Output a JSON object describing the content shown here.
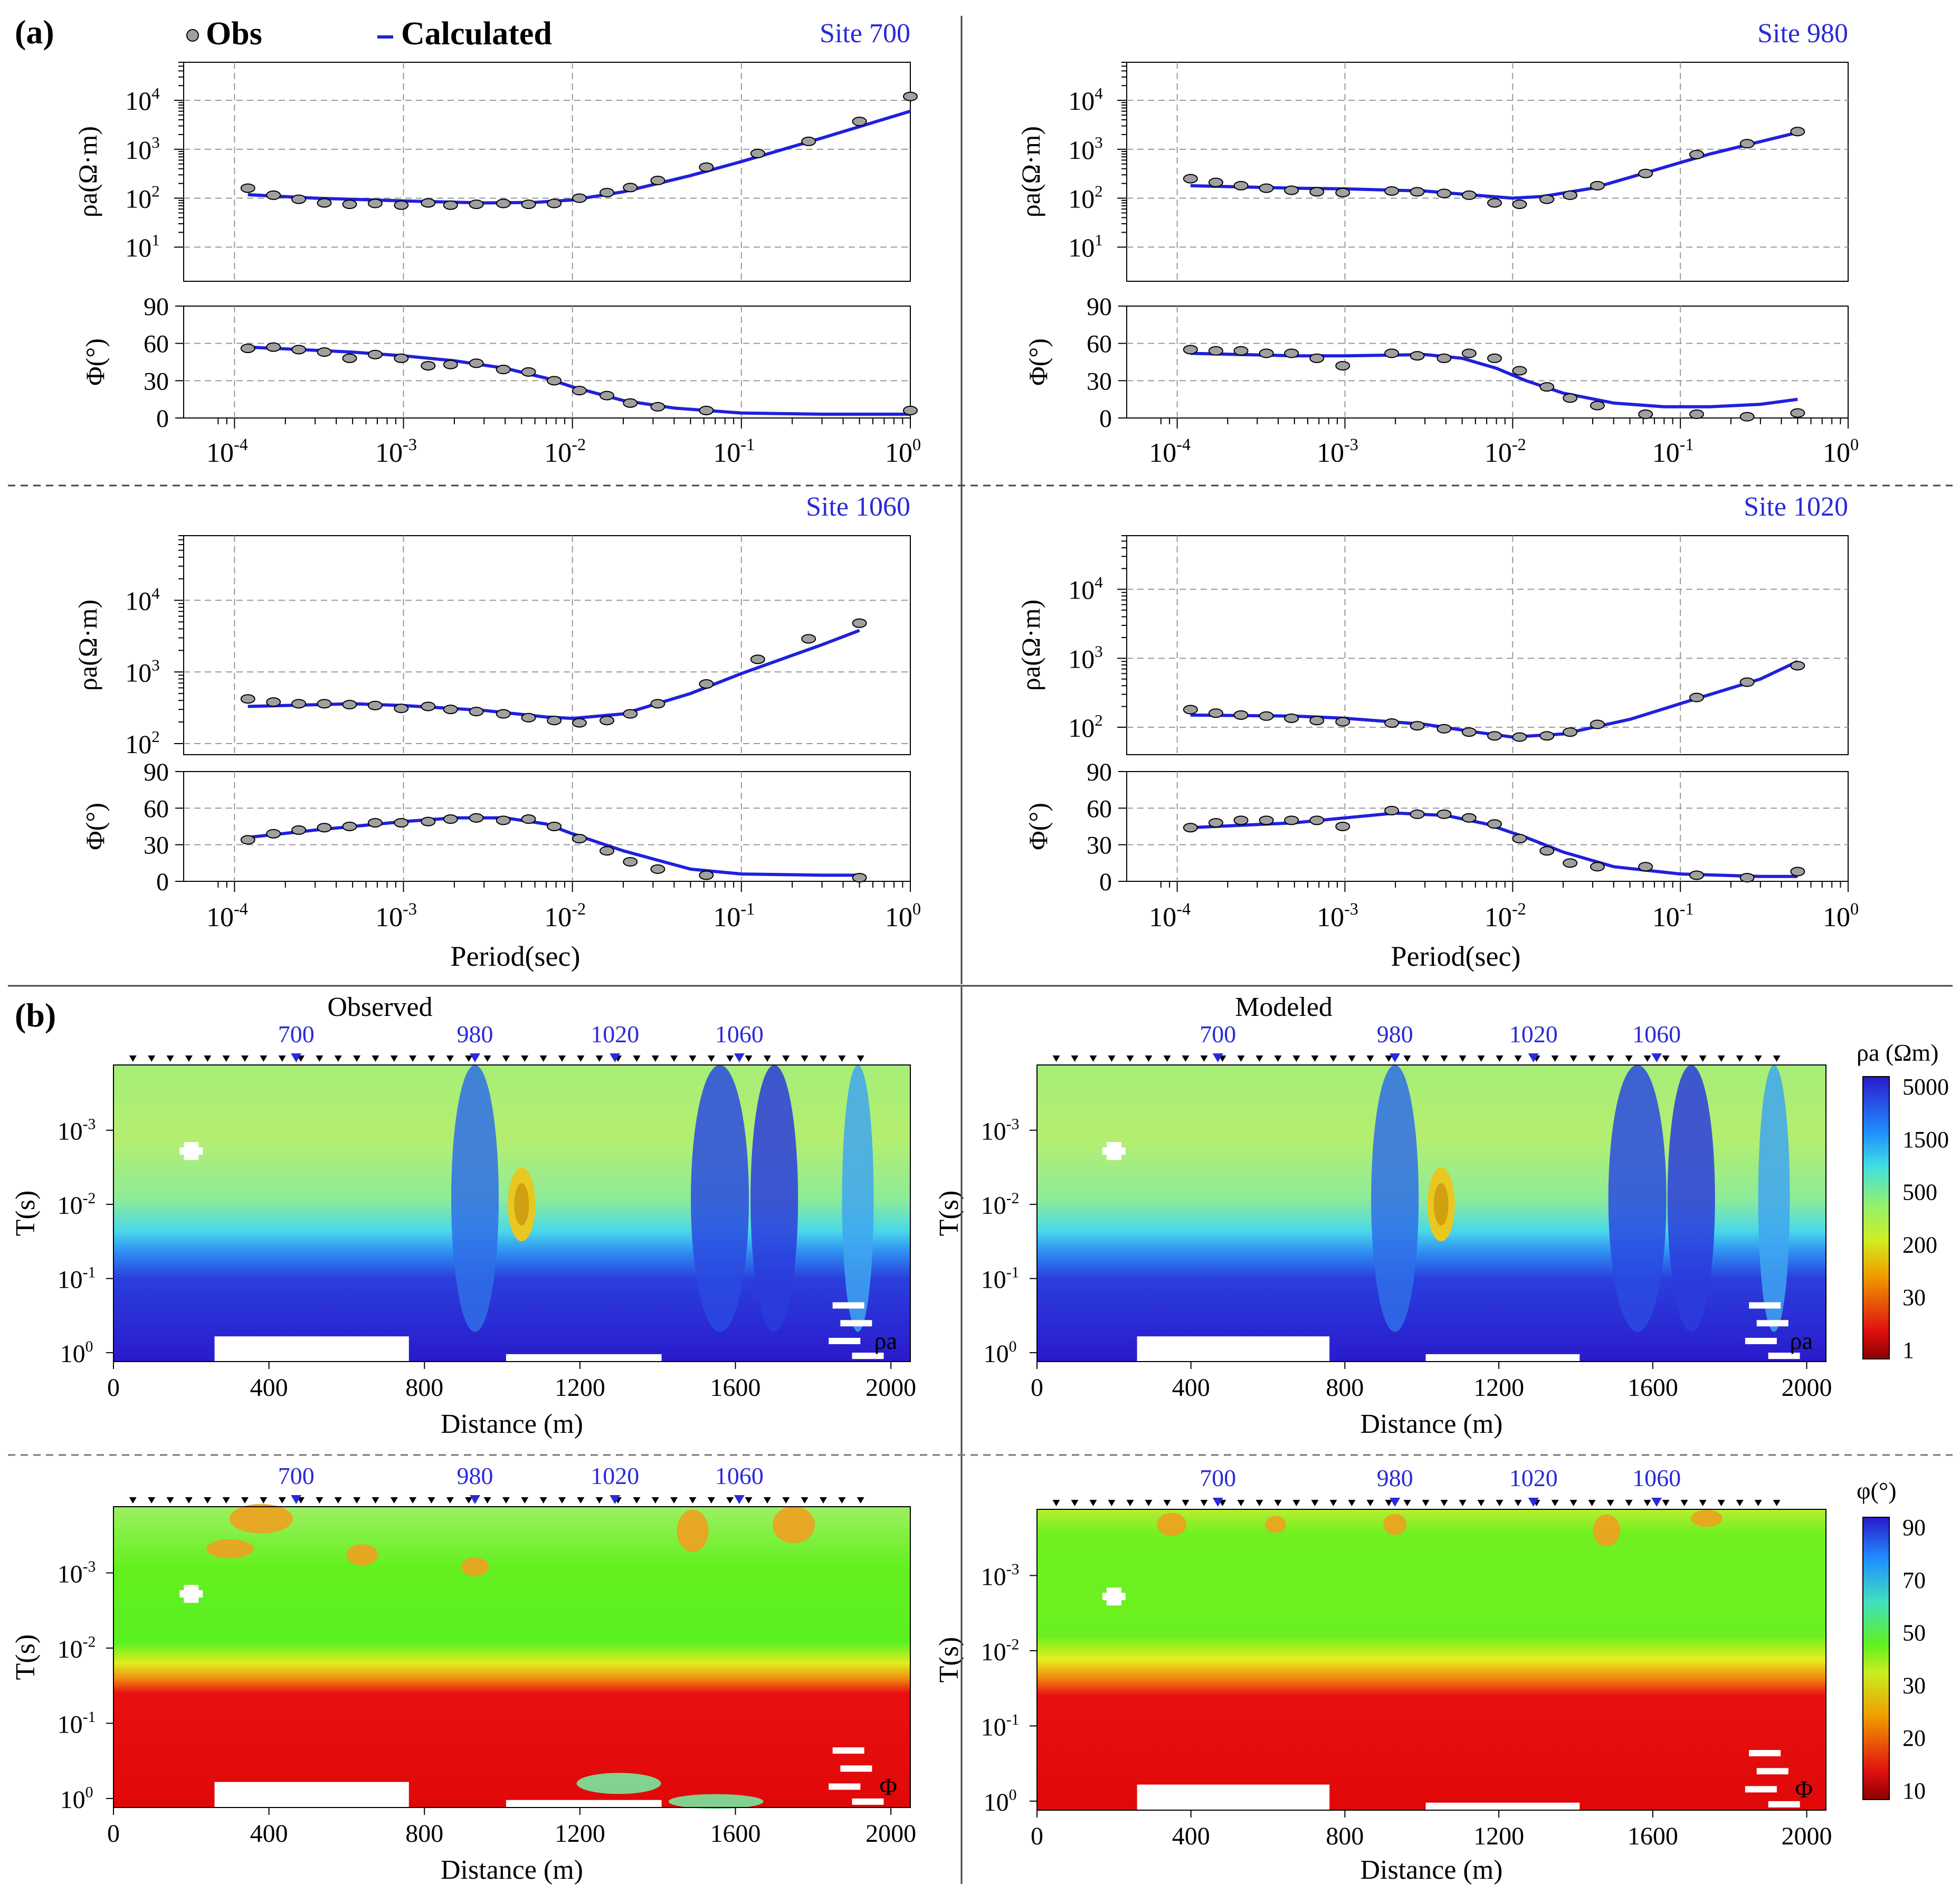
{
  "panel_labels": {
    "a": "(a)",
    "b": "(b)"
  },
  "legend": {
    "obs": "Obs",
    "calc": "Calculated",
    "marker_icon": "filled-gray-circle-icon",
    "line_icon": "blue-line-icon"
  },
  "colors": {
    "calc_line": "#2020dd",
    "site_label": "#2a2ad8",
    "obs_fill": "#a0a0a0",
    "text": "#000000",
    "grid": "#999999"
  },
  "sounding_axes": {
    "rho_label": "ρa(Ω·m)",
    "phi_label": "Φ(°)",
    "x_label": "Period(sec)",
    "x_ticks": [
      "-4",
      "-3",
      "-2",
      "-1",
      "0"
    ],
    "phi_ticks": [
      "0",
      "30",
      "60",
      "90"
    ]
  },
  "sections": {
    "observed_title": "Observed",
    "modeled_title": "Modeled",
    "x_label": "Distance (m)",
    "y_label": "T(s)",
    "x_ticks": [
      "0",
      "400",
      "800",
      "1200",
      "1600",
      "2000"
    ],
    "y_ticks": [
      "-3",
      "-2",
      "-1",
      "0"
    ],
    "station_labels": [
      "700",
      "980",
      "1020",
      "1060"
    ],
    "rho_tag": "ρa",
    "phi_tag": "Φ",
    "rho_colorbar_title": "ρa (Ωm)",
    "phi_colorbar_title": "φ(°)",
    "rho_colorbar_ticks": [
      "5000",
      "1500",
      "500",
      "200",
      "30",
      "1"
    ],
    "phi_colorbar_ticks": [
      "90",
      "70",
      "50",
      "30",
      "20",
      "10"
    ]
  },
  "chart_data": [
    {
      "type": "scatter",
      "title": "Site 700",
      "x_scale": "log",
      "xlim": [
        5e-05,
        1
      ],
      "rho": {
        "ylabel": "ρa(Ω·m)",
        "ylim": [
          2,
          60000
        ],
        "y_scale": "log",
        "y_ticks": [
          "1",
          "2",
          "3",
          "4"
        ],
        "obs": [
          [
            0.00012,
            160
          ],
          [
            0.00017,
            115
          ],
          [
            0.00024,
            95
          ],
          [
            0.00034,
            80
          ],
          [
            0.00048,
            75
          ],
          [
            0.00068,
            78
          ],
          [
            0.00097,
            72
          ],
          [
            0.0014,
            80
          ],
          [
            0.0019,
            72
          ],
          [
            0.0027,
            75
          ],
          [
            0.0039,
            78
          ],
          [
            0.0055,
            75
          ],
          [
            0.0078,
            78
          ],
          [
            0.011,
            100
          ],
          [
            0.016,
            130
          ],
          [
            0.022,
            165
          ],
          [
            0.032,
            230
          ],
          [
            0.062,
            430
          ],
          [
            0.125,
            820
          ],
          [
            0.25,
            1450
          ],
          [
            0.5,
            3700
          ],
          [
            1.0,
            12000
          ]
        ],
        "calc": [
          [
            0.00012,
            118
          ],
          [
            0.0003,
            100
          ],
          [
            0.001,
            88
          ],
          [
            0.003,
            80
          ],
          [
            0.006,
            82
          ],
          [
            0.01,
            92
          ],
          [
            0.02,
            135
          ],
          [
            0.05,
            290
          ],
          [
            0.1,
            560
          ],
          [
            0.3,
            1700
          ],
          [
            1.0,
            6000
          ]
        ]
      },
      "phi": {
        "ylabel": "Φ(°)",
        "ylim": [
          0,
          90
        ],
        "obs": [
          [
            0.00012,
            56
          ],
          [
            0.00017,
            57
          ],
          [
            0.00024,
            55
          ],
          [
            0.00034,
            53
          ],
          [
            0.00048,
            48
          ],
          [
            0.00068,
            51
          ],
          [
            0.00097,
            48
          ],
          [
            0.0014,
            42
          ],
          [
            0.0019,
            43
          ],
          [
            0.0027,
            44
          ],
          [
            0.0039,
            39
          ],
          [
            0.0055,
            37
          ],
          [
            0.0078,
            30
          ],
          [
            0.011,
            22
          ],
          [
            0.016,
            18
          ],
          [
            0.022,
            12
          ],
          [
            0.032,
            9
          ],
          [
            0.062,
            6
          ],
          [
            1.0,
            6
          ]
        ],
        "calc": [
          [
            0.00012,
            57
          ],
          [
            0.0005,
            53
          ],
          [
            0.001,
            50
          ],
          [
            0.002,
            46
          ],
          [
            0.004,
            40
          ],
          [
            0.007,
            32
          ],
          [
            0.01,
            25
          ],
          [
            0.02,
            14
          ],
          [
            0.04,
            8
          ],
          [
            0.1,
            4
          ],
          [
            0.3,
            3
          ],
          [
            1.0,
            3
          ]
        ]
      }
    },
    {
      "type": "scatter",
      "title": "Site 980",
      "x_scale": "log",
      "xlim": [
        5e-05,
        1
      ],
      "rho": {
        "ylabel": "ρa(Ω·m)",
        "ylim": [
          2,
          60000
        ],
        "y_scale": "log",
        "y_ticks": [
          "1",
          "2",
          "3",
          "4"
        ],
        "obs": [
          [
            0.00012,
            250
          ],
          [
            0.00017,
            210
          ],
          [
            0.00024,
            180
          ],
          [
            0.00034,
            160
          ],
          [
            0.00048,
            145
          ],
          [
            0.00068,
            135
          ],
          [
            0.00097,
            130
          ],
          [
            0.0019,
            140
          ],
          [
            0.0027,
            135
          ],
          [
            0.0039,
            125
          ],
          [
            0.0055,
            115
          ],
          [
            0.0078,
            80
          ],
          [
            0.011,
            75
          ],
          [
            0.016,
            95
          ],
          [
            0.022,
            115
          ],
          [
            0.032,
            180
          ],
          [
            0.062,
            320
          ],
          [
            0.125,
            780
          ],
          [
            0.25,
            1300
          ],
          [
            0.5,
            2300
          ]
        ],
        "calc": [
          [
            0.00012,
            180
          ],
          [
            0.0005,
            160
          ],
          [
            0.001,
            155
          ],
          [
            0.003,
            140
          ],
          [
            0.006,
            115
          ],
          [
            0.01,
            100
          ],
          [
            0.015,
            108
          ],
          [
            0.03,
            160
          ],
          [
            0.06,
            320
          ],
          [
            0.15,
            800
          ],
          [
            0.5,
            2200
          ]
        ]
      },
      "phi": {
        "ylabel": "Φ(°)",
        "ylim": [
          0,
          90
        ],
        "obs": [
          [
            0.00012,
            55
          ],
          [
            0.00017,
            54
          ],
          [
            0.00024,
            54
          ],
          [
            0.00034,
            52
          ],
          [
            0.00048,
            52
          ],
          [
            0.00068,
            48
          ],
          [
            0.00097,
            42
          ],
          [
            0.0019,
            52
          ],
          [
            0.0027,
            50
          ],
          [
            0.0039,
            48
          ],
          [
            0.0055,
            52
          ],
          [
            0.0078,
            48
          ],
          [
            0.011,
            38
          ],
          [
            0.016,
            25
          ],
          [
            0.022,
            16
          ],
          [
            0.032,
            10
          ],
          [
            0.062,
            3
          ],
          [
            0.125,
            3
          ],
          [
            0.25,
            1
          ],
          [
            0.5,
            4
          ]
        ],
        "calc": [
          [
            0.00012,
            52
          ],
          [
            0.0005,
            50
          ],
          [
            0.001,
            50
          ],
          [
            0.003,
            51
          ],
          [
            0.005,
            48
          ],
          [
            0.008,
            40
          ],
          [
            0.012,
            30
          ],
          [
            0.02,
            20
          ],
          [
            0.04,
            12
          ],
          [
            0.08,
            9
          ],
          [
            0.15,
            9
          ],
          [
            0.3,
            11
          ],
          [
            0.5,
            15
          ]
        ]
      }
    },
    {
      "type": "scatter",
      "title": "Site 1060",
      "x_scale": "log",
      "xlim": [
        5e-05,
        1
      ],
      "rho": {
        "ylabel": "ρa(Ω·m)",
        "ylim": [
          70,
          80000
        ],
        "y_scale": "log",
        "y_ticks": [
          "2",
          "3",
          "4"
        ],
        "obs": [
          [
            0.00012,
            420
          ],
          [
            0.00017,
            380
          ],
          [
            0.00024,
            360
          ],
          [
            0.00034,
            360
          ],
          [
            0.00048,
            350
          ],
          [
            0.00068,
            340
          ],
          [
            0.00097,
            310
          ],
          [
            0.0014,
            330
          ],
          [
            0.0019,
            300
          ],
          [
            0.0027,
            280
          ],
          [
            0.0039,
            260
          ],
          [
            0.0055,
            230
          ],
          [
            0.0078,
            210
          ],
          [
            0.011,
            195
          ],
          [
            0.016,
            210
          ],
          [
            0.022,
            260
          ],
          [
            0.032,
            360
          ],
          [
            0.062,
            680
          ],
          [
            0.125,
            1500
          ],
          [
            0.25,
            2900
          ],
          [
            0.5,
            4800
          ]
        ],
        "calc": [
          [
            0.00012,
            330
          ],
          [
            0.0005,
            360
          ],
          [
            0.001,
            340
          ],
          [
            0.003,
            290
          ],
          [
            0.007,
            235
          ],
          [
            0.01,
            225
          ],
          [
            0.02,
            260
          ],
          [
            0.05,
            500
          ],
          [
            0.1,
            950
          ],
          [
            0.3,
            2400
          ],
          [
            0.5,
            3800
          ]
        ]
      },
      "phi": {
        "ylabel": "Φ(°)",
        "ylim": [
          0,
          90
        ],
        "obs": [
          [
            0.00012,
            34
          ],
          [
            0.00017,
            39
          ],
          [
            0.00024,
            42
          ],
          [
            0.00034,
            44
          ],
          [
            0.00048,
            45
          ],
          [
            0.00068,
            48
          ],
          [
            0.00097,
            48
          ],
          [
            0.0014,
            49
          ],
          [
            0.0019,
            51
          ],
          [
            0.0027,
            52
          ],
          [
            0.0039,
            50
          ],
          [
            0.0055,
            51
          ],
          [
            0.0078,
            45
          ],
          [
            0.011,
            35
          ],
          [
            0.016,
            25
          ],
          [
            0.022,
            16
          ],
          [
            0.032,
            10
          ],
          [
            0.062,
            5
          ],
          [
            0.5,
            3
          ]
        ],
        "calc": [
          [
            0.00012,
            36
          ],
          [
            0.0003,
            42
          ],
          [
            0.001,
            49
          ],
          [
            0.002,
            52
          ],
          [
            0.004,
            52
          ],
          [
            0.007,
            47
          ],
          [
            0.01,
            39
          ],
          [
            0.02,
            25
          ],
          [
            0.05,
            10
          ],
          [
            0.1,
            6
          ],
          [
            0.3,
            5
          ],
          [
            0.5,
            5
          ]
        ]
      }
    },
    {
      "type": "scatter",
      "title": "Site 1020",
      "x_scale": "log",
      "xlim": [
        5e-05,
        1
      ],
      "rho": {
        "ylabel": "ρa(Ω·m)",
        "ylim": [
          40,
          60000
        ],
        "y_scale": "log",
        "y_ticks": [
          "2",
          "3",
          "4"
        ],
        "obs": [
          [
            0.00012,
            180
          ],
          [
            0.00017,
            160
          ],
          [
            0.00024,
            150
          ],
          [
            0.00034,
            145
          ],
          [
            0.00048,
            135
          ],
          [
            0.00068,
            125
          ],
          [
            0.00097,
            120
          ],
          [
            0.0019,
            115
          ],
          [
            0.0027,
            105
          ],
          [
            0.0039,
            95
          ],
          [
            0.0055,
            85
          ],
          [
            0.0078,
            75
          ],
          [
            0.011,
            72
          ],
          [
            0.016,
            75
          ],
          [
            0.022,
            85
          ],
          [
            0.032,
            110
          ],
          [
            0.125,
            270
          ],
          [
            0.25,
            450
          ],
          [
            0.5,
            780
          ]
        ],
        "calc": [
          [
            0.00012,
            150
          ],
          [
            0.0005,
            145
          ],
          [
            0.001,
            135
          ],
          [
            0.003,
            110
          ],
          [
            0.006,
            85
          ],
          [
            0.01,
            72
          ],
          [
            0.02,
            80
          ],
          [
            0.05,
            130
          ],
          [
            0.1,
            220
          ],
          [
            0.3,
            500
          ],
          [
            0.5,
            900
          ]
        ]
      },
      "phi": {
        "ylabel": "Φ(°)",
        "ylim": [
          0,
          90
        ],
        "obs": [
          [
            0.00012,
            44
          ],
          [
            0.00017,
            48
          ],
          [
            0.00024,
            50
          ],
          [
            0.00034,
            50
          ],
          [
            0.00048,
            50
          ],
          [
            0.00068,
            50
          ],
          [
            0.00097,
            45
          ],
          [
            0.0019,
            58
          ],
          [
            0.0027,
            55
          ],
          [
            0.0039,
            55
          ],
          [
            0.0055,
            52
          ],
          [
            0.0078,
            47
          ],
          [
            0.011,
            35
          ],
          [
            0.016,
            25
          ],
          [
            0.022,
            15
          ],
          [
            0.032,
            12
          ],
          [
            0.062,
            12
          ],
          [
            0.125,
            5
          ],
          [
            0.25,
            3
          ],
          [
            0.5,
            8
          ]
        ],
        "calc": [
          [
            0.00012,
            44
          ],
          [
            0.0005,
            48
          ],
          [
            0.001,
            52
          ],
          [
            0.002,
            56
          ],
          [
            0.004,
            54
          ],
          [
            0.007,
            47
          ],
          [
            0.012,
            36
          ],
          [
            0.02,
            24
          ],
          [
            0.04,
            12
          ],
          [
            0.1,
            6
          ],
          [
            0.3,
            4
          ],
          [
            0.5,
            4
          ]
        ]
      }
    },
    {
      "type": "heatmap",
      "title": "Observed",
      "quantity": "ρa",
      "xlim": [
        0,
        2050
      ],
      "xlabel": "Distance (m)",
      "ylabel": "T(s)"
    },
    {
      "type": "heatmap",
      "title": "Modeled",
      "quantity": "ρa",
      "xlim": [
        0,
        2050
      ],
      "xlabel": "Distance (m)",
      "ylabel": "T(s)"
    },
    {
      "type": "heatmap",
      "title": "",
      "quantity": "Φ",
      "xlim": [
        0,
        2050
      ],
      "xlabel": "Distance (m)",
      "ylabel": "T(s)"
    },
    {
      "type": "heatmap",
      "title": "",
      "quantity": "Φ",
      "xlim": [
        0,
        2050
      ],
      "xlabel": "Distance (m)",
      "ylabel": "T(s)"
    }
  ]
}
